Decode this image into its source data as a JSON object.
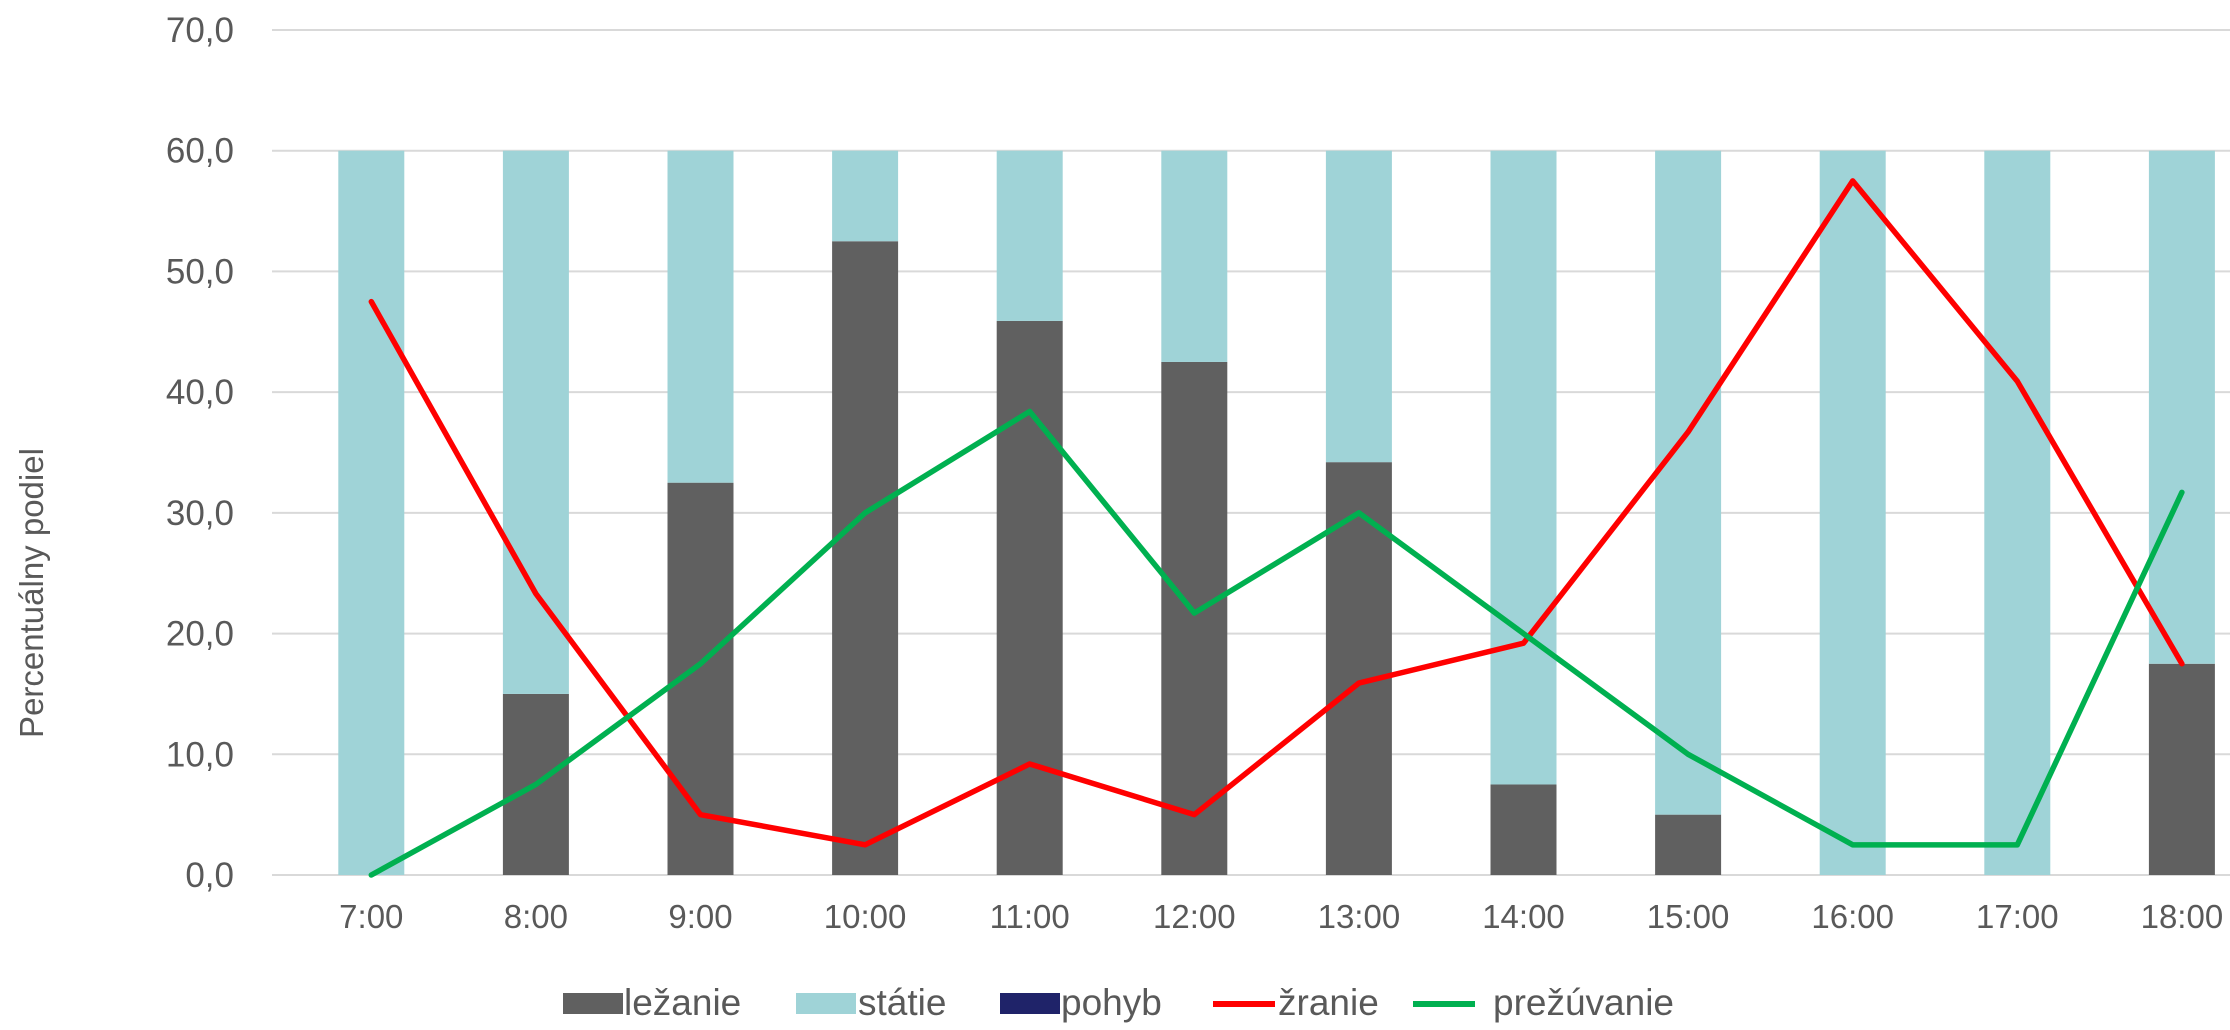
{
  "chart_data": {
    "type": "bar",
    "stacked": true,
    "title": "",
    "xlabel": "",
    "ylabel": "Percentuálny podiel",
    "ylim": [
      0,
      70
    ],
    "y_ticks": [
      "0,0",
      "10,0",
      "20,0",
      "30,0",
      "40,0",
      "50,0",
      "60,0",
      "70,0"
    ],
    "grid": "horizontal",
    "legend_position": "bottom",
    "categories": [
      "7:00",
      "8:00",
      "9:00",
      "10:00",
      "11:00",
      "12:00",
      "13:00",
      "14:00",
      "15:00",
      "16:00",
      "17:00",
      "18:00"
    ],
    "bar_series": [
      {
        "name": "ležanie",
        "color": "#606060",
        "values": [
          0,
          15.0,
          32.5,
          52.5,
          45.9,
          42.5,
          34.2,
          7.5,
          5.0,
          0,
          0,
          17.5
        ]
      },
      {
        "name": "státie",
        "color": "#9FD3D7",
        "values": [
          60.0,
          45.0,
          27.5,
          7.5,
          14.1,
          17.5,
          25.8,
          52.5,
          55.0,
          60.0,
          60.0,
          42.5
        ]
      },
      {
        "name": "pohyb",
        "color": "#1F2369",
        "values": [
          0,
          0,
          0,
          0,
          0,
          0,
          0,
          0,
          0,
          0,
          0,
          0
        ]
      }
    ],
    "line_series": [
      {
        "name": "žranie",
        "color": "#FF0000",
        "values": [
          47.5,
          23.3,
          5.0,
          2.5,
          9.2,
          5.0,
          15.9,
          19.2,
          36.7,
          57.5,
          40.9,
          17.5
        ]
      },
      {
        "name": "prežúvanie",
        "color": "#00B050",
        "values": [
          0.0,
          7.5,
          17.5,
          30.0,
          38.4,
          21.7,
          30.0,
          20.0,
          10.0,
          2.5,
          2.5,
          31.7
        ]
      }
    ]
  }
}
